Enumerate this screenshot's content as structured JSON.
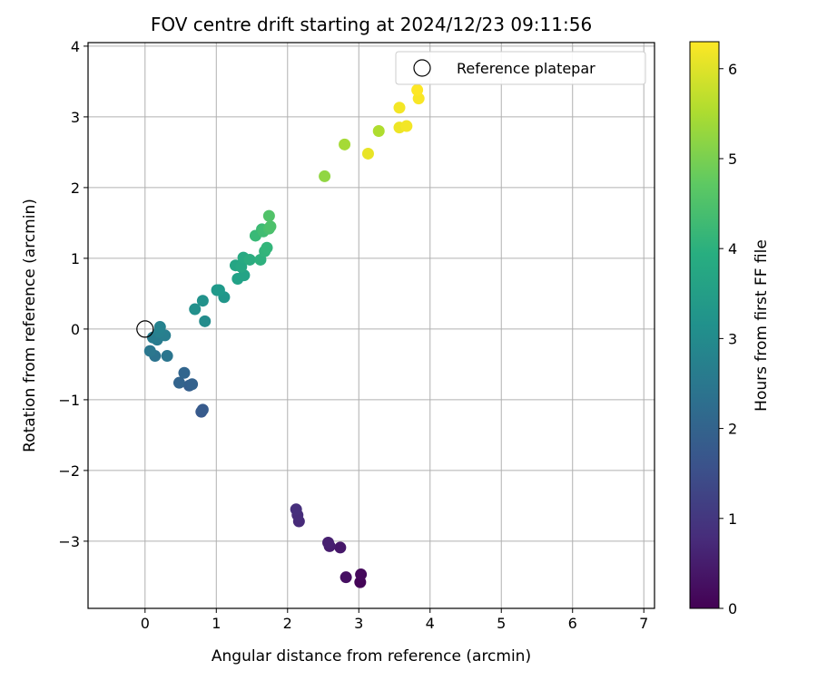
{
  "chart_data": {
    "type": "scatter",
    "title": "FOV centre drift starting at 2024/12/23 09:11:56",
    "xlabel": "Angular distance from reference (arcmin)",
    "ylabel": "Rotation from reference (arcmin)",
    "xlim": [
      -0.8,
      7.15
    ],
    "ylim": [
      -3.95,
      4.05
    ],
    "xticks": [
      0,
      1,
      2,
      3,
      4,
      5,
      6,
      7
    ],
    "yticks": [
      -3,
      -2,
      -1,
      0,
      1,
      2,
      3,
      4
    ],
    "grid": true,
    "legend": {
      "position": "top-right",
      "label": "Reference platepar"
    },
    "reference_point": {
      "x": 0,
      "y": 0
    },
    "colorbar": {
      "label": "Hours from first FF file",
      "colormap": "viridis",
      "range": [
        0,
        6.3
      ],
      "ticks": [
        0,
        1,
        2,
        3,
        4,
        5,
        6
      ]
    },
    "points": [
      {
        "x": 3.02,
        "y": -3.58,
        "c": 0.05
      },
      {
        "x": 3.03,
        "y": -3.47,
        "c": 0.15
      },
      {
        "x": 2.82,
        "y": -3.51,
        "c": 0.25
      },
      {
        "x": 2.74,
        "y": -3.09,
        "c": 0.4
      },
      {
        "x": 2.59,
        "y": -3.07,
        "c": 0.5
      },
      {
        "x": 2.57,
        "y": -3.02,
        "c": 0.55
      },
      {
        "x": 2.16,
        "y": -2.72,
        "c": 0.75
      },
      {
        "x": 2.14,
        "y": -2.63,
        "c": 0.8
      },
      {
        "x": 2.12,
        "y": -2.55,
        "c": 0.85
      },
      {
        "x": 0.79,
        "y": -1.17,
        "c": 1.75
      },
      {
        "x": 0.81,
        "y": -1.14,
        "c": 1.8
      },
      {
        "x": 0.62,
        "y": -0.8,
        "c": 1.9
      },
      {
        "x": 0.66,
        "y": -0.78,
        "c": 1.95
      },
      {
        "x": 0.48,
        "y": -0.76,
        "c": 2.0
      },
      {
        "x": 0.55,
        "y": -0.62,
        "c": 2.05
      },
      {
        "x": 0.14,
        "y": -0.38,
        "c": 2.4
      },
      {
        "x": 0.31,
        "y": -0.38,
        "c": 2.45
      },
      {
        "x": 0.07,
        "y": -0.31,
        "c": 2.5
      },
      {
        "x": 0.17,
        "y": -0.15,
        "c": 2.6
      },
      {
        "x": 0.11,
        "y": -0.12,
        "c": 2.65
      },
      {
        "x": 0.28,
        "y": -0.09,
        "c": 2.7
      },
      {
        "x": 0.2,
        "y": -0.04,
        "c": 2.75
      },
      {
        "x": 0.21,
        "y": 0.03,
        "c": 2.8
      },
      {
        "x": 0.84,
        "y": 0.11,
        "c": 3.05
      },
      {
        "x": 0.7,
        "y": 0.28,
        "c": 3.15
      },
      {
        "x": 0.81,
        "y": 0.4,
        "c": 3.2
      },
      {
        "x": 1.11,
        "y": 0.45,
        "c": 3.3
      },
      {
        "x": 1.01,
        "y": 0.55,
        "c": 3.35
      },
      {
        "x": 1.04,
        "y": 0.55,
        "c": 3.4
      },
      {
        "x": 1.3,
        "y": 0.71,
        "c": 3.6
      },
      {
        "x": 1.39,
        "y": 0.76,
        "c": 3.65
      },
      {
        "x": 1.27,
        "y": 0.9,
        "c": 3.7
      },
      {
        "x": 1.35,
        "y": 0.88,
        "c": 3.75
      },
      {
        "x": 1.38,
        "y": 1.01,
        "c": 3.8
      },
      {
        "x": 1.47,
        "y": 0.98,
        "c": 3.9
      },
      {
        "x": 1.62,
        "y": 0.98,
        "c": 4.0
      },
      {
        "x": 1.68,
        "y": 1.1,
        "c": 4.1
      },
      {
        "x": 1.71,
        "y": 1.15,
        "c": 4.15
      },
      {
        "x": 1.55,
        "y": 1.32,
        "c": 4.25
      },
      {
        "x": 1.64,
        "y": 1.41,
        "c": 4.3
      },
      {
        "x": 1.66,
        "y": 1.38,
        "c": 4.35
      },
      {
        "x": 1.74,
        "y": 1.42,
        "c": 4.45
      },
      {
        "x": 1.76,
        "y": 1.45,
        "c": 4.5
      },
      {
        "x": 1.74,
        "y": 1.6,
        "c": 4.55
      },
      {
        "x": 2.52,
        "y": 2.16,
        "c": 5.25
      },
      {
        "x": 2.8,
        "y": 2.61,
        "c": 5.45
      },
      {
        "x": 3.28,
        "y": 2.8,
        "c": 5.55
      },
      {
        "x": 3.13,
        "y": 2.48,
        "c": 6.1
      },
      {
        "x": 3.57,
        "y": 2.85,
        "c": 6.15
      },
      {
        "x": 3.67,
        "y": 2.87,
        "c": 6.2
      },
      {
        "x": 3.57,
        "y": 3.13,
        "c": 6.2
      },
      {
        "x": 3.84,
        "y": 3.26,
        "c": 6.25
      },
      {
        "x": 3.82,
        "y": 3.38,
        "c": 6.3
      }
    ]
  }
}
